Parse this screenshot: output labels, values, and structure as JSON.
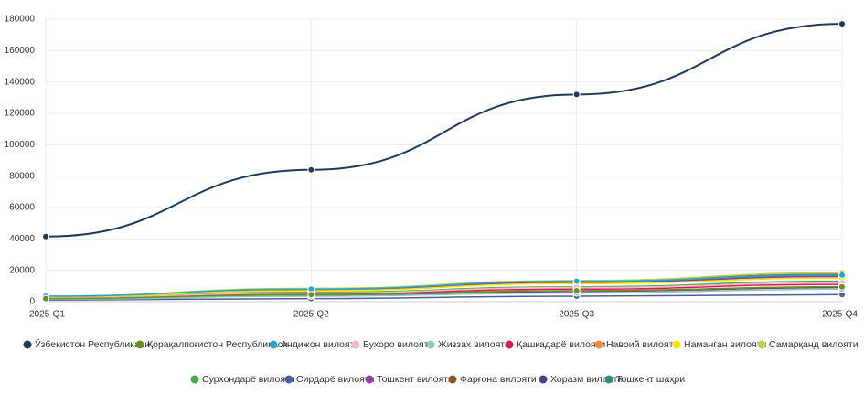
{
  "chart_data": {
    "type": "line",
    "categories": [
      "2025-Q1",
      "2025-Q2",
      "2025-Q3",
      "2025-Q4"
    ],
    "ylim": [
      0,
      180000
    ],
    "yticks": [
      0,
      20000,
      40000,
      60000,
      80000,
      100000,
      120000,
      140000,
      160000,
      180000
    ],
    "grid": true,
    "series": [
      {
        "name": "Ўзбекистон Республикаси",
        "color": "#1f3a5a",
        "values": [
          41500,
          84000,
          132000,
          177000
        ]
      },
      {
        "name": "Қорақалпоғистон Республикаси",
        "color": "#6b8e23",
        "values": [
          2000,
          4500,
          7000,
          9500
        ]
      },
      {
        "name": "Андижон вилояти",
        "color": "#2ea3c9",
        "values": [
          3500,
          8000,
          13000,
          17000
        ]
      },
      {
        "name": "Бухоро вилояти",
        "color": "#f4b6c2",
        "values": [
          2500,
          5500,
          9000,
          12000
        ]
      },
      {
        "name": "Жиззах вилояти",
        "color": "#8fc9b0",
        "values": [
          1500,
          3500,
          5500,
          8000
        ]
      },
      {
        "name": "Қашқадарё вилояти",
        "color": "#d81b60",
        "values": [
          2500,
          5000,
          8000,
          11000
        ]
      },
      {
        "name": "Навоий вилояти",
        "color": "#f28c38",
        "values": [
          2000,
          4500,
          7000,
          9500
        ]
      },
      {
        "name": "Наманган вилояти",
        "color": "#f5e400",
        "values": [
          3000,
          7000,
          11500,
          15000
        ]
      },
      {
        "name": "Самарқанд вилояти",
        "color": "#b5d64c",
        "values": [
          3500,
          8500,
          13500,
          18500
        ]
      },
      {
        "name": "Сурхондарё вилояти",
        "color": "#3fae49",
        "values": [
          2500,
          6000,
          9500,
          13000
        ]
      },
      {
        "name": "Сирдарё вилояти",
        "color": "#4a5fa0",
        "values": [
          1000,
          2000,
          3500,
          4500
        ]
      },
      {
        "name": "Тошкент вилояти",
        "color": "#8e3fa0",
        "values": [
          3000,
          7500,
          12000,
          16000
        ]
      },
      {
        "name": "Фарғона вилояти",
        "color": "#8b5a2b",
        "values": [
          3200,
          8000,
          13000,
          17500
        ]
      },
      {
        "name": "Хоразм вилояти",
        "color": "#4b3d8f",
        "values": [
          1800,
          4000,
          6500,
          9000
        ]
      },
      {
        "name": "Тошкент шаҳри",
        "color": "#2e8b7a",
        "values": [
          3500,
          8000,
          12500,
          16500
        ]
      }
    ]
  }
}
